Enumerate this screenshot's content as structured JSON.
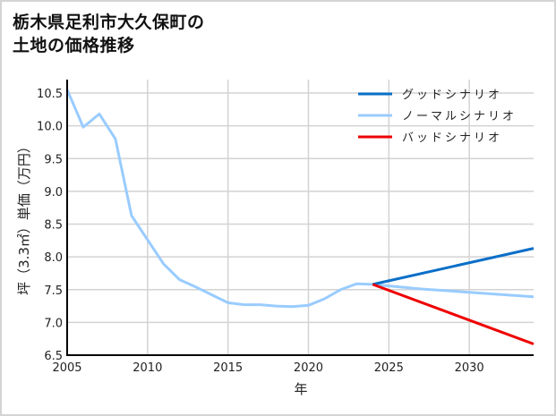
{
  "title_line1": "栃木県足利市大久保町の",
  "title_line2": "土地の価格推移",
  "chart_data": {
    "type": "line",
    "title": "栃木県足利市大久保町の土地の価格推移",
    "xlabel": "年",
    "ylabel": "坪（3.3㎡）単価（万円）",
    "xlim": [
      2005,
      2034
    ],
    "ylim": [
      6.5,
      10.7
    ],
    "xticks": [
      2005,
      2010,
      2015,
      2020,
      2025,
      2030
    ],
    "yticks": [
      6.5,
      7.0,
      7.5,
      8.0,
      8.5,
      9.0,
      9.5,
      10.0,
      10.5
    ],
    "ytick_labels": [
      "6.5",
      "7.0",
      "7.5",
      "8.0",
      "8.5",
      "9.0",
      "9.5",
      "10.0",
      "10.5"
    ],
    "grid": true,
    "legend_position": "upper right",
    "series": [
      {
        "name": "グッドシナリオ",
        "color": "#0a6fc8",
        "x": [
          2024,
          2034
        ],
        "y": [
          7.58,
          8.13
        ]
      },
      {
        "name": "ノーマルシナリオ",
        "color": "#99ccff",
        "x": [
          2005,
          2006,
          2007,
          2008,
          2009,
          2010,
          2011,
          2012,
          2013,
          2014,
          2015,
          2016,
          2017,
          2018,
          2019,
          2020,
          2021,
          2022,
          2023,
          2024,
          2027,
          2030,
          2034
        ],
        "y": [
          10.55,
          9.98,
          10.18,
          9.8,
          8.63,
          8.26,
          7.89,
          7.65,
          7.54,
          7.42,
          7.3,
          7.27,
          7.27,
          7.25,
          7.24,
          7.26,
          7.36,
          7.5,
          7.59,
          7.58,
          7.51,
          7.46,
          7.39
        ]
      },
      {
        "name": "バッドシナリオ",
        "color": "#ee0000",
        "x": [
          2024,
          2034
        ],
        "y": [
          7.58,
          6.67
        ]
      }
    ]
  },
  "legend": {
    "items": [
      {
        "label": "グッドシナリオ",
        "color": "#0a6fc8"
      },
      {
        "label": "ノーマルシナリオ",
        "color": "#99ccff"
      },
      {
        "label": "バッドシナリオ",
        "color": "#ee0000"
      }
    ]
  }
}
